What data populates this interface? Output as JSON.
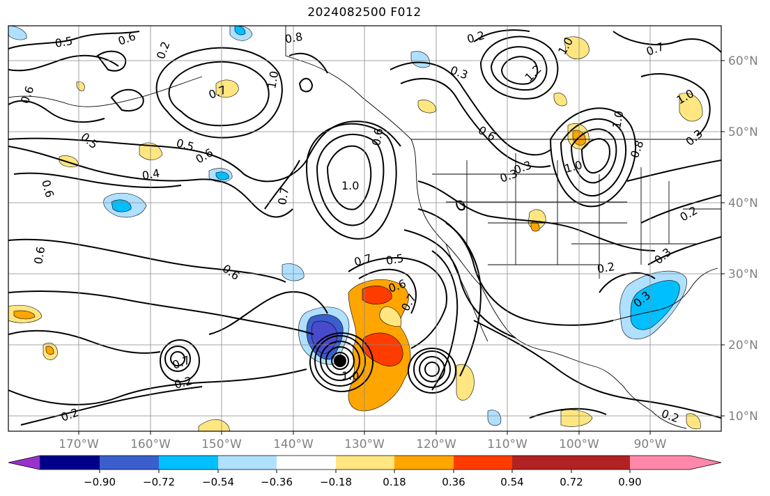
{
  "title": "2024082500 F012",
  "lat_labels": [
    "60°N",
    "50°N",
    "40°N",
    "30°N",
    "20°N",
    "10°N"
  ],
  "lon_labels": [
    "170°W",
    "160°W",
    "150°W",
    "140°W",
    "130°W",
    "120°W",
    "110°W",
    "100°W",
    "90°W"
  ],
  "colorbar": {
    "ticks": [
      "−0.90",
      "−0.72",
      "−0.54",
      "−0.36",
      "−0.18",
      "0.18",
      "0.36",
      "0.54",
      "0.72",
      "0.90"
    ],
    "colors": [
      "#9932cc",
      "#00008b",
      "#3a5fcd",
      "#00bfff",
      "#b0e0ff",
      "#ffffff",
      "#ffe680",
      "#ffa500",
      "#ff3c00",
      "#b22222",
      "#ff88aa"
    ]
  },
  "contour_labels": [
    "0.2",
    "0.3",
    "0.4",
    "0.5",
    "0.6",
    "0.7",
    "0.8",
    "1.0",
    "1.2"
  ],
  "fill_colors": {
    "light_yellow": "#ffe680",
    "orange": "#ffa500",
    "red_orange": "#ff3c00",
    "light_blue": "#b0e0ff",
    "cyan": "#00bfff",
    "royal_blue": "#3a5fcd"
  },
  "storm_marker": "black-dot"
}
